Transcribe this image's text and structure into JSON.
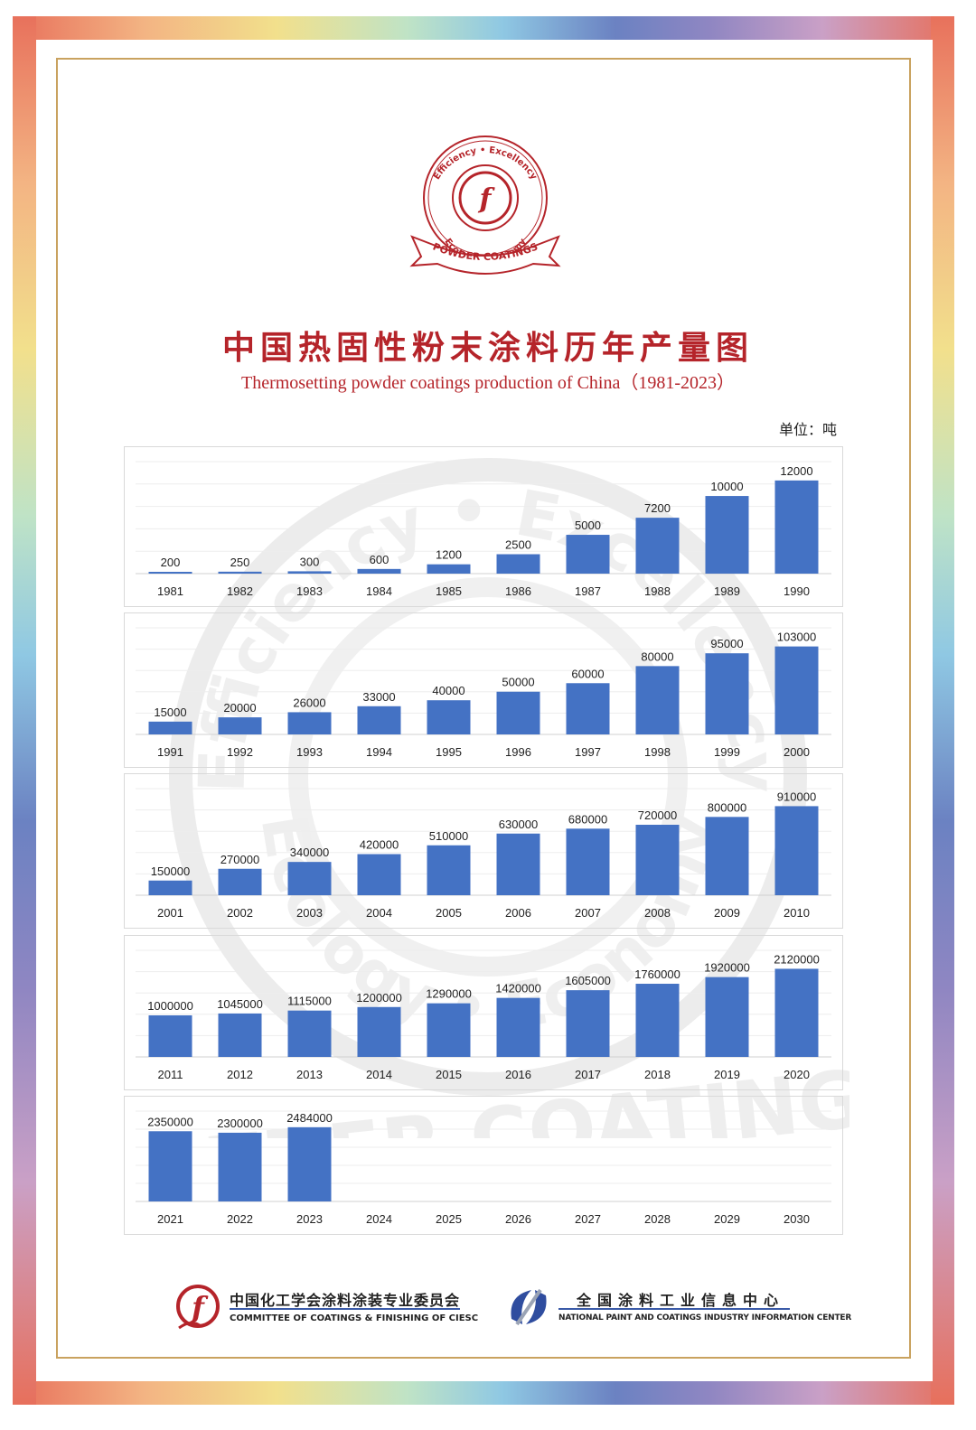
{
  "title_cn": "中国热固性粉末涂料历年产量图",
  "title_en": "Thermosetting powder coatings production of China（1981-2023）",
  "unit": "单位：吨",
  "seal": {
    "top_text": "Efficiency • Excellency",
    "bottom_text": "Ecology • Economy",
    "ribbon": "POWDER COATINGS",
    "color": "#b5242a"
  },
  "watermark": {
    "top_text": "Efficiency • Excellency",
    "bottom_text": "Ecology • Economy",
    "ribbon": "POWDER COATINGS"
  },
  "bar_color": "#4472c4",
  "chart_data": [
    {
      "type": "bar",
      "categories": [
        "1981",
        "1982",
        "1983",
        "1984",
        "1985",
        "1986",
        "1987",
        "1988",
        "1989",
        "1990"
      ],
      "values": [
        200,
        250,
        300,
        600,
        1200,
        2500,
        5000,
        7200,
        10000,
        12000
      ],
      "ylim": [
        0,
        12800
      ]
    },
    {
      "type": "bar",
      "categories": [
        "1991",
        "1992",
        "1993",
        "1994",
        "1995",
        "1996",
        "1997",
        "1998",
        "1999",
        "2000"
      ],
      "values": [
        15000,
        20000,
        26000,
        33000,
        40000,
        50000,
        60000,
        80000,
        95000,
        103000
      ],
      "ylim": [
        0,
        110000
      ]
    },
    {
      "type": "bar",
      "categories": [
        "2001",
        "2002",
        "2003",
        "2004",
        "2005",
        "2006",
        "2007",
        "2008",
        "2009",
        "2010"
      ],
      "values": [
        150000,
        270000,
        340000,
        420000,
        510000,
        630000,
        680000,
        720000,
        800000,
        910000
      ],
      "ylim": [
        0,
        960000
      ]
    },
    {
      "type": "bar",
      "categories": [
        "2011",
        "2012",
        "2013",
        "2014",
        "2015",
        "2016",
        "2017",
        "2018",
        "2019",
        "2020"
      ],
      "values": [
        1000000,
        1045000,
        1115000,
        1200000,
        1290000,
        1420000,
        1605000,
        1760000,
        1920000,
        2120000
      ],
      "ylim": [
        0,
        2260000
      ]
    },
    {
      "type": "bar",
      "categories": [
        "2021",
        "2022",
        "2023",
        "2024",
        "2025",
        "2026",
        "2027",
        "2028",
        "2029",
        "2030"
      ],
      "values": [
        2350000,
        2300000,
        2484000,
        null,
        null,
        null,
        null,
        null,
        null,
        null
      ],
      "ylim": [
        0,
        2600000
      ]
    }
  ],
  "footer": {
    "left_cn": "中国化工学会涂料涂装专业委员会",
    "left_en": "COMMITTEE OF COATINGS & FINISHING OF CIESC",
    "right_cn": "全国涂料工业信息中心",
    "right_en": "NATIONAL PAINT AND COATINGS INDUSTRY INFORMATION CENTER"
  }
}
